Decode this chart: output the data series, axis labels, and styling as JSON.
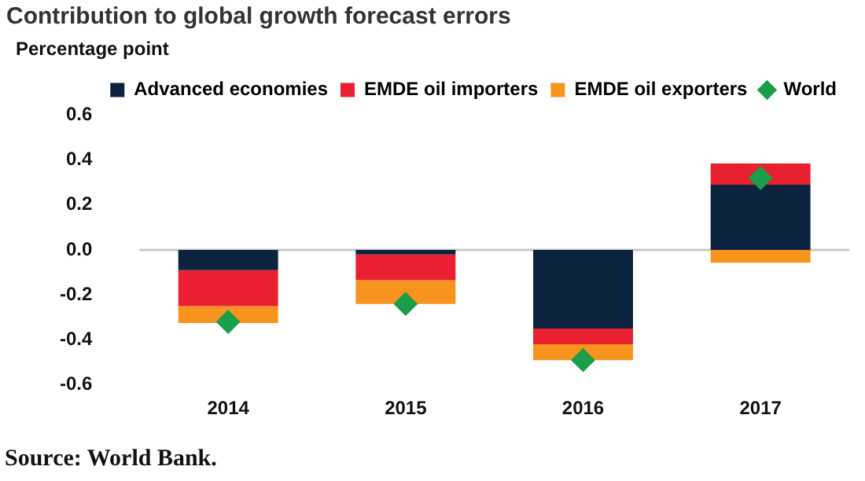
{
  "chart_data": {
    "type": "bar",
    "title": "Contribution to global growth forecast errors",
    "ylabel": "Percentage point",
    "categories": [
      "2014",
      "2015",
      "2016",
      "2017"
    ],
    "stacked": true,
    "series": [
      {
        "name": "Advanced economies",
        "color": "#0c2340",
        "values": [
          -0.09,
          -0.02,
          -0.35,
          0.29
        ]
      },
      {
        "name": "EMDE oil importers",
        "color": "#e8202f",
        "values": [
          -0.16,
          -0.115,
          -0.07,
          0.095
        ]
      },
      {
        "name": "EMDE oil exporters",
        "color": "#f7941d",
        "values": [
          -0.075,
          -0.105,
          -0.07,
          -0.057
        ]
      },
      {
        "name": "World",
        "type": "scatter",
        "marker": "diamond",
        "color": "#1a9e4a",
        "values": [
          -0.32,
          -0.24,
          -0.49,
          0.32
        ]
      }
    ],
    "ylim": [
      -0.6,
      0.6
    ],
    "yticks": [
      {
        "value": -0.6,
        "label": "-0.6"
      },
      {
        "value": -0.4,
        "label": "-0.4"
      },
      {
        "value": -0.2,
        "label": "-0.2"
      },
      {
        "value": 0,
        "label": "0.0"
      },
      {
        "value": 0.2,
        "label": "0.2"
      },
      {
        "value": 0.4,
        "label": "0.4"
      },
      {
        "value": 0.6,
        "label": "0.6"
      }
    ],
    "ref_lines": [
      {
        "axis": "y",
        "value": 0,
        "color": "#c8c8c8"
      }
    ],
    "grid": false,
    "legend": "top right",
    "annotations": [
      "Source: World Bank."
    ]
  }
}
